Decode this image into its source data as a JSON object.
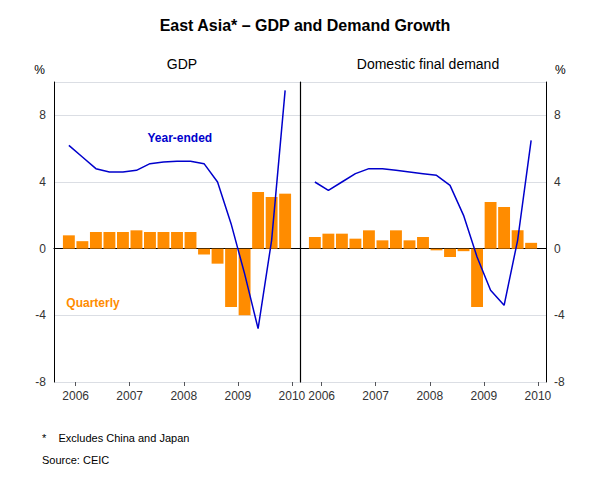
{
  "title": "East Asia* – GDP and Demand Growth",
  "annotations": [
    "*    Excludes China and Japan",
    "Source: CEIC"
  ],
  "chart_data": [
    {
      "type": "bar",
      "title": "GDP",
      "ylabel": "%",
      "x": [
        2005.875,
        2006.125,
        2006.375,
        2006.625,
        2006.875,
        2007.125,
        2007.375,
        2007.625,
        2007.875,
        2008.125,
        2008.375,
        2008.625,
        2008.875,
        2009.125,
        2009.375,
        2009.625,
        2009.875
      ],
      "series": [
        {
          "name": "Quarterly",
          "type": "bar",
          "color": "#FF8C00",
          "values": [
            0.8,
            0.45,
            1.0,
            1.0,
            1.0,
            1.1,
            1.0,
            1.0,
            1.0,
            1.0,
            -0.35,
            -0.9,
            -3.5,
            -4.0,
            3.4,
            3.1,
            3.3
          ]
        },
        {
          "name": "Year-ended",
          "type": "line",
          "color": "#0000CC",
          "values": [
            6.2,
            5.5,
            4.8,
            4.6,
            4.6,
            4.7,
            5.1,
            5.2,
            5.25,
            5.25,
            5.1,
            4.0,
            1.5,
            -1.5,
            -4.8,
            0.5,
            9.5
          ]
        }
      ],
      "xlim": [
        2005.6,
        2010.15
      ],
      "xticks": [
        2006,
        2007,
        2008,
        2009,
        2010
      ],
      "ylim": [
        -8,
        10
      ],
      "yticks": [
        -8,
        -4,
        0,
        4,
        8
      ],
      "grid": true
    },
    {
      "type": "bar",
      "title": "Domestic final demand",
      "ylabel": "%",
      "x": [
        2005.875,
        2006.125,
        2006.375,
        2006.625,
        2006.875,
        2007.125,
        2007.375,
        2007.625,
        2007.875,
        2008.125,
        2008.375,
        2008.625,
        2008.875,
        2009.125,
        2009.375,
        2009.625,
        2009.875
      ],
      "series": [
        {
          "type": "bar",
          "color": "#FF8C00",
          "values": [
            0.7,
            0.9,
            0.9,
            0.6,
            1.1,
            0.5,
            1.1,
            0.5,
            0.7,
            -0.1,
            -0.5,
            -0.15,
            -3.5,
            2.8,
            2.5,
            1.1,
            0.35
          ]
        },
        {
          "type": "line",
          "color": "#0000CC",
          "values": [
            4.0,
            3.5,
            4.0,
            4.5,
            4.8,
            4.8,
            4.7,
            4.6,
            4.5,
            4.4,
            3.8,
            2.0,
            -0.5,
            -2.5,
            -3.4,
            0.5,
            6.5
          ]
        }
      ],
      "xlim": [
        2005.6,
        2010.15
      ],
      "xticks": [
        2006,
        2007,
        2008,
        2009,
        2010
      ],
      "ylim": [
        -8,
        10
      ],
      "yticks": [
        -8,
        -4,
        0,
        4,
        8
      ],
      "grid": true
    }
  ]
}
